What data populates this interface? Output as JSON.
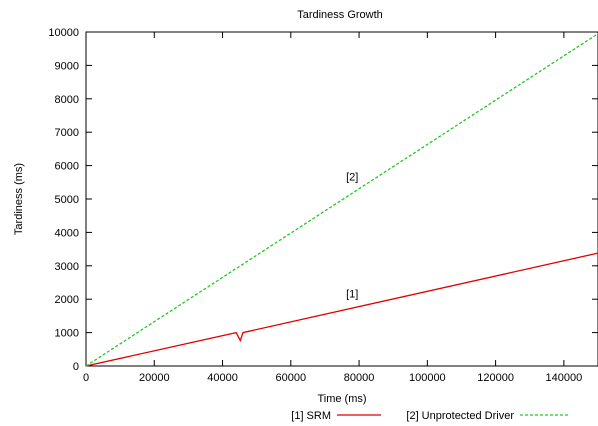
{
  "chart_data": {
    "type": "line",
    "title": "Tardiness Growth",
    "xlabel": "Time (ms)",
    "ylabel": "Tardiness (ms)",
    "xlim": [
      0,
      150000
    ],
    "ylim": [
      0,
      10000
    ],
    "xticks": [
      0,
      20000,
      40000,
      60000,
      80000,
      100000,
      120000,
      140000
    ],
    "yticks": [
      0,
      1000,
      2000,
      3000,
      4000,
      5000,
      6000,
      7000,
      8000,
      9000,
      10000
    ],
    "grid": false,
    "legend_position": "bottom",
    "series": [
      {
        "name": "[1] SRM",
        "color": "#e00000",
        "style": "solid",
        "points": [
          [
            0,
            0
          ],
          [
            44000,
            1000
          ],
          [
            45200,
            760
          ],
          [
            46000,
            1000
          ],
          [
            150000,
            3380
          ]
        ]
      },
      {
        "name": "[2] Unprotected Driver",
        "color": "#22c922",
        "style": "dashed",
        "points": [
          [
            0,
            0
          ],
          [
            150000,
            9950
          ]
        ]
      }
    ],
    "annotations": [
      {
        "text": "[2]",
        "x": 78000,
        "y": 5550
      },
      {
        "text": "[1]",
        "x": 78000,
        "y": 2050
      }
    ]
  }
}
